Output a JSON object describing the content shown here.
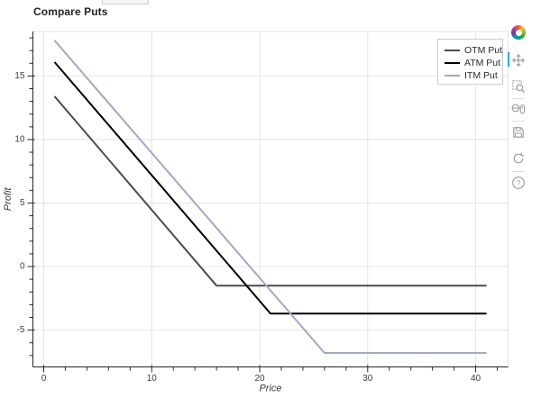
{
  "title": "Compare Puts",
  "chart_data": {
    "type": "line",
    "title": "Compare Puts",
    "xlabel": "Price",
    "ylabel": "Profit",
    "xlim": [
      -1,
      43
    ],
    "ylim": [
      -7.9,
      18.5
    ],
    "x_ticks": [
      0,
      10,
      20,
      30,
      40
    ],
    "x_minor_step": 2,
    "y_ticks": [
      -5,
      0,
      5,
      10,
      15
    ],
    "y_minor_step": 1,
    "grid": true,
    "legend_position": "top-right",
    "series": [
      {
        "name": "OTM Put",
        "color": "#4d4d4d",
        "points": [
          [
            1,
            13.4
          ],
          [
            16,
            -1.5
          ],
          [
            41,
            -1.5
          ]
        ]
      },
      {
        "name": "ATM Put",
        "color": "#000000",
        "points": [
          [
            1,
            16.1
          ],
          [
            21,
            -3.7
          ],
          [
            41,
            -3.7
          ]
        ]
      },
      {
        "name": "ITM Put",
        "color": "#a2a8c4",
        "points": [
          [
            1,
            17.8
          ],
          [
            26,
            -6.8
          ],
          [
            41,
            -6.8
          ]
        ]
      }
    ]
  },
  "toolbar": {
    "logo": "bokeh-logo",
    "active_color": "#26aae1",
    "icon_color": "#9e9e9e",
    "tools": [
      {
        "name": "pan",
        "active": true
      },
      {
        "name": "box-zoom",
        "active": false
      },
      {
        "name": "wheel-zoom",
        "active": false
      },
      {
        "name": "save",
        "active": false
      },
      {
        "name": "reset",
        "active": false
      },
      {
        "name": "help",
        "active": false
      }
    ]
  }
}
